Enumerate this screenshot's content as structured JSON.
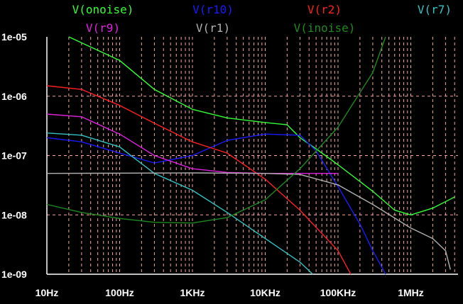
{
  "chart_data": {
    "type": "line",
    "title": "",
    "xlabel": "",
    "ylabel": "",
    "x_scale": "log",
    "y_scale": "log",
    "xlim": [
      10,
      4000000
    ],
    "ylim": [
      1e-09,
      1e-05
    ],
    "grid": true,
    "legend_position": "top",
    "colors": {
      "background": "#000000",
      "axes": "#ffffff",
      "grid": "#f4a7a0",
      "tick_text": "#ffffff"
    },
    "x_ticks": [
      {
        "value": 10,
        "label": "10Hz"
      },
      {
        "value": 100,
        "label": "100Hz"
      },
      {
        "value": 1000,
        "label": "1KHz"
      },
      {
        "value": 10000,
        "label": "10KHz"
      },
      {
        "value": 100000,
        "label": "100KHz"
      },
      {
        "value": 1000000,
        "label": "1MHz"
      }
    ],
    "y_ticks": [
      {
        "value": 1e-05,
        "label": "1e-05"
      },
      {
        "value": 1e-06,
        "label": "1e-06"
      },
      {
        "value": 1e-07,
        "label": "1e-07"
      },
      {
        "value": 1e-08,
        "label": "1e-08"
      },
      {
        "value": 1e-09,
        "label": "1e-09"
      }
    ],
    "series": [
      {
        "name": "V(onoise)",
        "color": "#33ff33",
        "points": [
          [
            20,
            1e-05
          ],
          [
            100,
            4e-06
          ],
          [
            300,
            1.3e-06
          ],
          [
            1000,
            6e-07
          ],
          [
            3000,
            4.3e-07
          ],
          [
            10000,
            3.6e-07
          ],
          [
            20000,
            3.3e-07
          ],
          [
            30000,
            2e-07
          ],
          [
            50000,
            1.3e-07
          ],
          [
            100000,
            7e-08
          ],
          [
            300000,
            2.5e-08
          ],
          [
            600000,
            1.2e-08
          ],
          [
            1000000,
            1e-08
          ],
          [
            2000000,
            1.3e-08
          ],
          [
            4000000,
            2e-08
          ]
        ]
      },
      {
        "name": "V(r10)",
        "color": "#1a1aff",
        "points": [
          [
            10,
            2e-07
          ],
          [
            30,
            1.7e-07
          ],
          [
            100,
            1.1e-07
          ],
          [
            300,
            7.5e-08
          ],
          [
            1000,
            1e-07
          ],
          [
            3000,
            1.8e-07
          ],
          [
            10000,
            2.3e-07
          ],
          [
            30000,
            2.2e-07
          ],
          [
            50000,
            1.2e-07
          ],
          [
            100000,
            3e-08
          ],
          [
            200000,
            7e-09
          ],
          [
            300000,
            2.5e-09
          ],
          [
            450000,
            1e-09
          ]
        ]
      },
      {
        "name": "V(r2)",
        "color": "#ff2020",
        "points": [
          [
            10,
            1.5e-06
          ],
          [
            30,
            1.3e-06
          ],
          [
            100,
            7e-07
          ],
          [
            300,
            3.5e-07
          ],
          [
            1000,
            1.7e-07
          ],
          [
            3000,
            1.1e-07
          ],
          [
            10000,
            4e-08
          ],
          [
            30000,
            1.2e-08
          ],
          [
            100000,
            2.5e-09
          ],
          [
            150000,
            1e-09
          ]
        ]
      },
      {
        "name": "V(r7)",
        "color": "#33c3c3",
        "points": [
          [
            10,
            2.4e-07
          ],
          [
            30,
            2.2e-07
          ],
          [
            100,
            1.4e-07
          ],
          [
            300,
            5e-08
          ],
          [
            1000,
            2.6e-08
          ],
          [
            3000,
            1.1e-08
          ],
          [
            10000,
            4e-09
          ],
          [
            30000,
            1.6e-09
          ],
          [
            45000,
            1e-09
          ]
        ]
      },
      {
        "name": "V(r9)",
        "color": "#e020e0",
        "points": [
          [
            10,
            5e-07
          ],
          [
            30,
            4.5e-07
          ],
          [
            100,
            2.3e-07
          ],
          [
            300,
            1e-07
          ],
          [
            1000,
            6e-08
          ],
          [
            3000,
            5.2e-08
          ],
          [
            10000,
            5e-08
          ],
          [
            100000,
            5e-08
          ]
        ]
      },
      {
        "name": "V(r1)",
        "color": "#b0b0b0",
        "points": [
          [
            10,
            5e-08
          ],
          [
            1000,
            5.1e-08
          ],
          [
            10000,
            5e-08
          ],
          [
            30000,
            4.8e-08
          ],
          [
            100000,
            3.2e-08
          ],
          [
            300000,
            1.5e-08
          ],
          [
            1000000,
            6e-09
          ],
          [
            2000000,
            4e-09
          ],
          [
            3000000,
            2.5e-09
          ],
          [
            3500000,
            1.2e-09
          ]
        ]
      },
      {
        "name": "V(inoise)",
        "color": "#1e8a1e",
        "points": [
          [
            10,
            1.5e-08
          ],
          [
            30,
            1.1e-08
          ],
          [
            100,
            8.7e-09
          ],
          [
            300,
            7.5e-09
          ],
          [
            1000,
            7.3e-09
          ],
          [
            3000,
            9e-09
          ],
          [
            10000,
            1.8e-08
          ],
          [
            30000,
            6e-08
          ],
          [
            100000,
            3e-07
          ],
          [
            300000,
            2.5e-06
          ],
          [
            450000,
            1e-05
          ]
        ]
      }
    ]
  },
  "legend": [
    {
      "label": "V(onoise)",
      "color": "#33ff33"
    },
    {
      "label": "V(r10)",
      "color": "#1a1aff"
    },
    {
      "label": "V(r2)",
      "color": "#ff2020"
    },
    {
      "label": "V(r7)",
      "color": "#33c3c3"
    },
    {
      "label": "V(r9)",
      "color": "#e020e0"
    },
    {
      "label": "V(r1)",
      "color": "#b0b0b0"
    },
    {
      "label": "V(inoise)",
      "color": "#1e8a1e"
    }
  ]
}
